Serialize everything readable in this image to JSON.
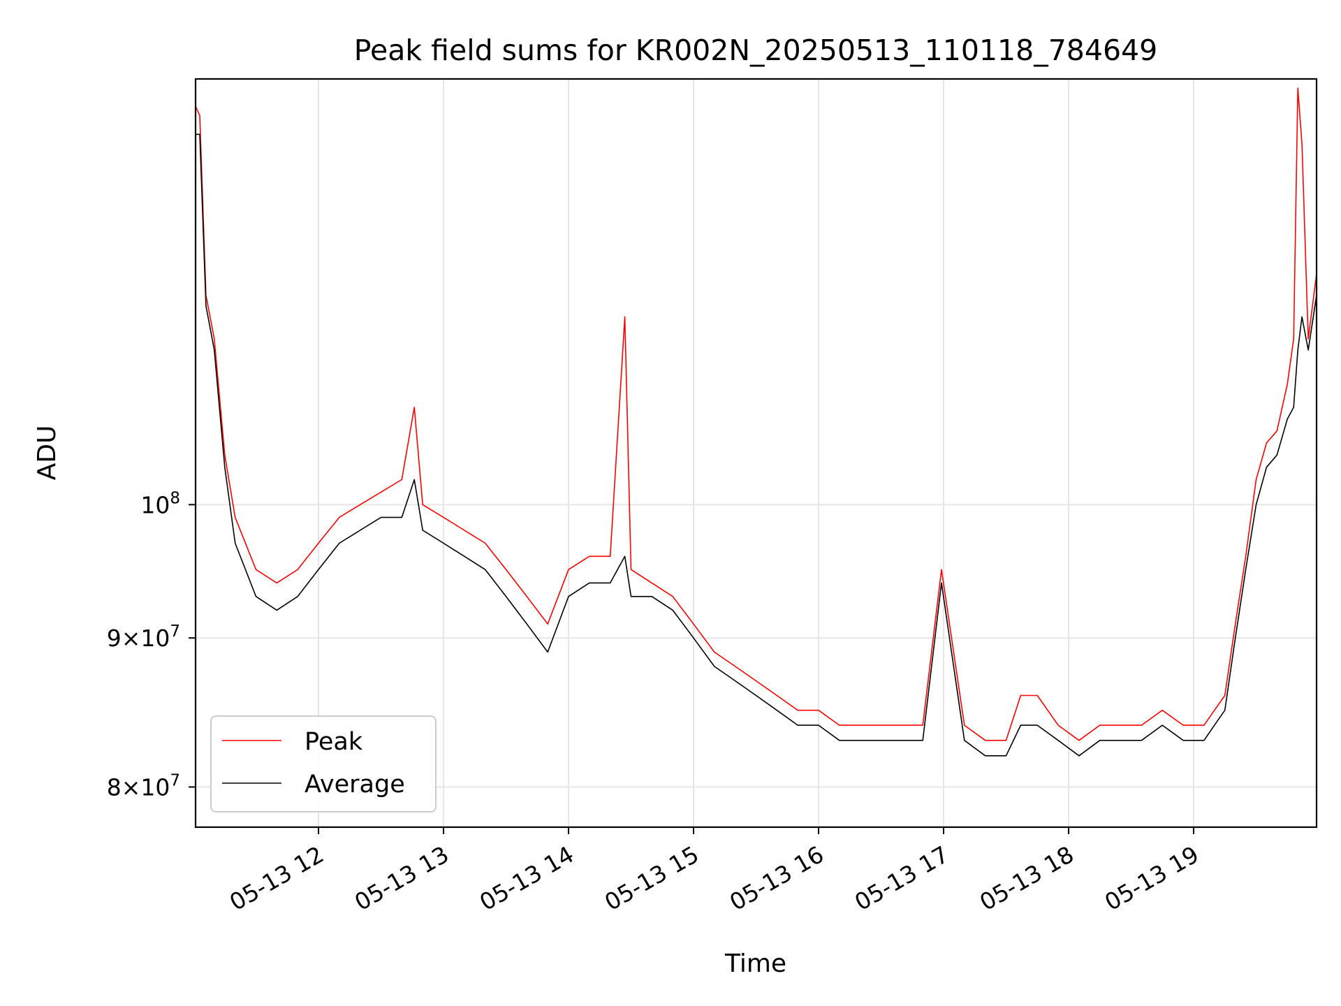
{
  "chart_data": {
    "type": "line",
    "title": "Peak field sums for KR002N_20250513_110118_784649",
    "xlabel": "Time",
    "ylabel": "ADU",
    "yscale": "log",
    "xlim": [
      "2025-05-13T11:01",
      "2025-05-13T19:59"
    ],
    "ylim": [
      77500000,
      140000000
    ],
    "x_ticks": [
      "05-13 12",
      "05-13 13",
      "05-13 14",
      "05-13 15",
      "05-13 16",
      "05-13 17",
      "05-13 18",
      "05-13 19"
    ],
    "y_ticks": [
      {
        "value": 80000000,
        "mant": "8",
        "exp": "7"
      },
      {
        "value": 90000000,
        "mant": "9",
        "exp": "7"
      },
      {
        "value": 100000000,
        "mant": "10",
        "exp": "8"
      }
    ],
    "grid": true,
    "legend_position": "lower-left",
    "series": [
      {
        "name": "Peak",
        "color": "#ff0000",
        "x": [
          "2025-05-13T11:01",
          "2025-05-13T11:03",
          "2025-05-13T11:06",
          "2025-05-13T11:10",
          "2025-05-13T11:15",
          "2025-05-13T11:20",
          "2025-05-13T11:30",
          "2025-05-13T11:40",
          "2025-05-13T11:50",
          "2025-05-13T12:00",
          "2025-05-13T12:10",
          "2025-05-13T12:20",
          "2025-05-13T12:30",
          "2025-05-13T12:40",
          "2025-05-13T12:46",
          "2025-05-13T12:50",
          "2025-05-13T13:00",
          "2025-05-13T13:10",
          "2025-05-13T13:20",
          "2025-05-13T13:30",
          "2025-05-13T13:40",
          "2025-05-13T13:50",
          "2025-05-13T14:00",
          "2025-05-13T14:10",
          "2025-05-13T14:20",
          "2025-05-13T14:27",
          "2025-05-13T14:30",
          "2025-05-13T14:40",
          "2025-05-13T14:50",
          "2025-05-13T15:00",
          "2025-05-13T15:10",
          "2025-05-13T15:20",
          "2025-05-13T15:30",
          "2025-05-13T15:40",
          "2025-05-13T15:50",
          "2025-05-13T16:00",
          "2025-05-13T16:10",
          "2025-05-13T16:20",
          "2025-05-13T16:30",
          "2025-05-13T16:40",
          "2025-05-13T16:50",
          "2025-05-13T16:59",
          "2025-05-13T17:10",
          "2025-05-13T17:20",
          "2025-05-13T17:30",
          "2025-05-13T17:37",
          "2025-05-13T17:45",
          "2025-05-13T17:55",
          "2025-05-13T18:05",
          "2025-05-13T18:15",
          "2025-05-13T18:25",
          "2025-05-13T18:35",
          "2025-05-13T18:45",
          "2025-05-13T18:55",
          "2025-05-13T19:05",
          "2025-05-13T19:10",
          "2025-05-13T19:15",
          "2025-05-13T19:20",
          "2025-05-13T19:25",
          "2025-05-13T19:30",
          "2025-05-13T19:35",
          "2025-05-13T19:40",
          "2025-05-13T19:45",
          "2025-05-13T19:48",
          "2025-05-13T19:50",
          "2025-05-13T19:52",
          "2025-05-13T19:55",
          "2025-05-13T19:59"
        ],
        "values": [
          137000000,
          136000000,
          118000000,
          114000000,
          104000000,
          99000000,
          95000000,
          94000000,
          95000000,
          97000000,
          99000000,
          100000000,
          101000000,
          102000000,
          108000000,
          100000000,
          99000000,
          98000000,
          97000000,
          95000000,
          93000000,
          91000000,
          95000000,
          96000000,
          96000000,
          116000000,
          95000000,
          94000000,
          93000000,
          91000000,
          89000000,
          88000000,
          87000000,
          86000000,
          85000000,
          85000000,
          84000000,
          84000000,
          84000000,
          84000000,
          84000000,
          95000000,
          84000000,
          83000000,
          83000000,
          86000000,
          86000000,
          84000000,
          83000000,
          84000000,
          84000000,
          84000000,
          85000000,
          84000000,
          84000000,
          85000000,
          86000000,
          91000000,
          96000000,
          102000000,
          105000000,
          106000000,
          110000000,
          114000000,
          139000000,
          133000000,
          114000000,
          120000000
        ]
      },
      {
        "name": "Average",
        "color": "#000000",
        "x": [
          "2025-05-13T11:01",
          "2025-05-13T11:03",
          "2025-05-13T11:06",
          "2025-05-13T11:10",
          "2025-05-13T11:15",
          "2025-05-13T11:20",
          "2025-05-13T11:30",
          "2025-05-13T11:40",
          "2025-05-13T11:50",
          "2025-05-13T12:00",
          "2025-05-13T12:10",
          "2025-05-13T12:20",
          "2025-05-13T12:30",
          "2025-05-13T12:40",
          "2025-05-13T12:46",
          "2025-05-13T12:50",
          "2025-05-13T13:00",
          "2025-05-13T13:10",
          "2025-05-13T13:20",
          "2025-05-13T13:30",
          "2025-05-13T13:40",
          "2025-05-13T13:50",
          "2025-05-13T14:00",
          "2025-05-13T14:10",
          "2025-05-13T14:20",
          "2025-05-13T14:27",
          "2025-05-13T14:30",
          "2025-05-13T14:40",
          "2025-05-13T14:50",
          "2025-05-13T15:00",
          "2025-05-13T15:10",
          "2025-05-13T15:20",
          "2025-05-13T15:30",
          "2025-05-13T15:40",
          "2025-05-13T15:50",
          "2025-05-13T16:00",
          "2025-05-13T16:10",
          "2025-05-13T16:20",
          "2025-05-13T16:30",
          "2025-05-13T16:40",
          "2025-05-13T16:50",
          "2025-05-13T16:59",
          "2025-05-13T17:10",
          "2025-05-13T17:20",
          "2025-05-13T17:30",
          "2025-05-13T17:37",
          "2025-05-13T17:45",
          "2025-05-13T17:55",
          "2025-05-13T18:05",
          "2025-05-13T18:15",
          "2025-05-13T18:25",
          "2025-05-13T18:35",
          "2025-05-13T18:45",
          "2025-05-13T18:55",
          "2025-05-13T19:05",
          "2025-05-13T19:10",
          "2025-05-13T19:15",
          "2025-05-13T19:20",
          "2025-05-13T19:25",
          "2025-05-13T19:30",
          "2025-05-13T19:35",
          "2025-05-13T19:40",
          "2025-05-13T19:45",
          "2025-05-13T19:48",
          "2025-05-13T19:50",
          "2025-05-13T19:52",
          "2025-05-13T19:55",
          "2025-05-13T19:59"
        ],
        "values": [
          134000000,
          134000000,
          117000000,
          113000000,
          103000000,
          97000000,
          93000000,
          92000000,
          93000000,
          95000000,
          97000000,
          98000000,
          99000000,
          99000000,
          102000000,
          98000000,
          97000000,
          96000000,
          95000000,
          93000000,
          91000000,
          89000000,
          93000000,
          94000000,
          94000000,
          96000000,
          93000000,
          93000000,
          92000000,
          90000000,
          88000000,
          87000000,
          86000000,
          85000000,
          84000000,
          84000000,
          83000000,
          83000000,
          83000000,
          83000000,
          83000000,
          94000000,
          83000000,
          82000000,
          82000000,
          84000000,
          84000000,
          83000000,
          82000000,
          83000000,
          83000000,
          83000000,
          84000000,
          83000000,
          83000000,
          84000000,
          85000000,
          90000000,
          95000000,
          100000000,
          103000000,
          104000000,
          107000000,
          108000000,
          113000000,
          116000000,
          113000000,
          118000000
        ]
      }
    ]
  }
}
